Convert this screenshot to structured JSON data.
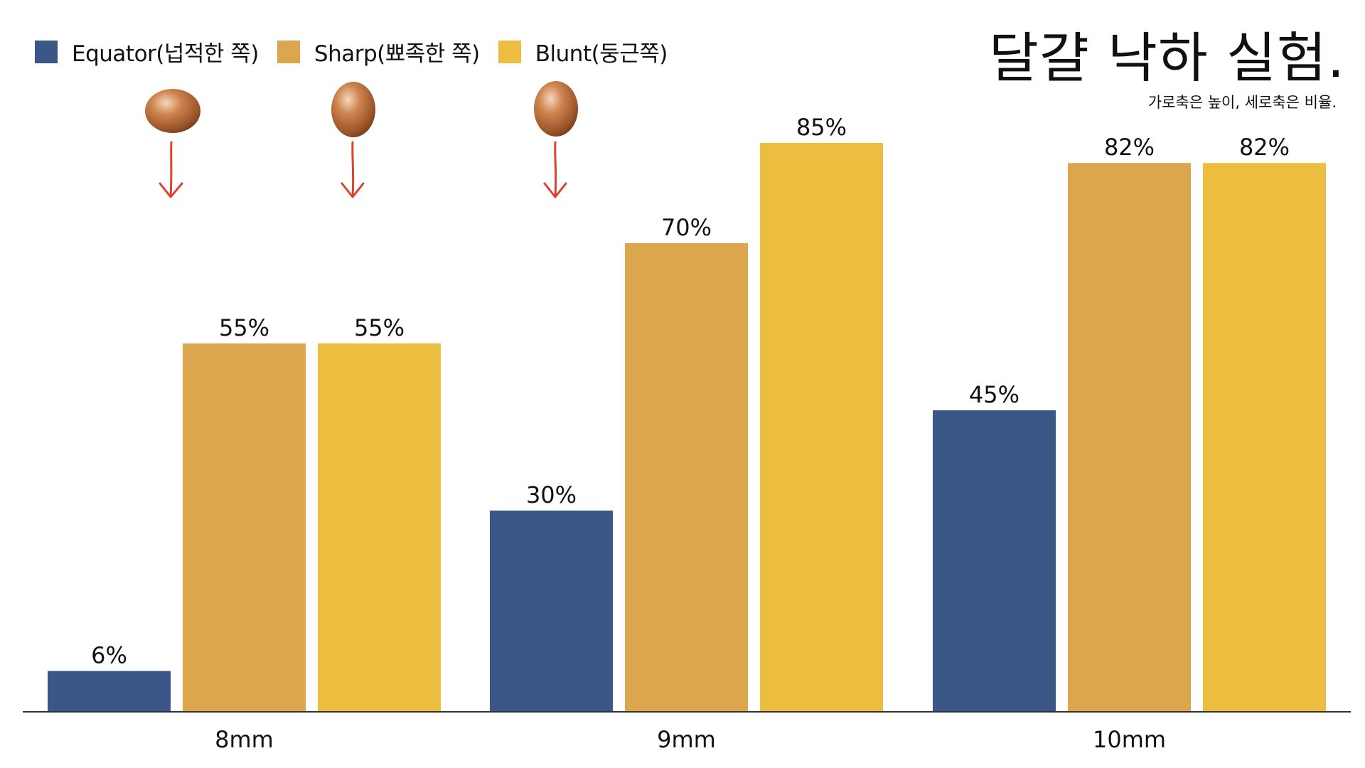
{
  "title": "달걀 낙하 실험.",
  "subtitle": "가로축은 높이, 세로축은 비율.",
  "icons": {
    "egg": "egg-icon",
    "arrow": "down-arrow-icon",
    "arrow_color": "#d9432f"
  },
  "chart_data": {
    "type": "bar",
    "categories": [
      "8mm",
      "9mm",
      "10mm"
    ],
    "series": [
      {
        "name": "Equator(넙적한 쪽)",
        "color": "#3a5787",
        "values": [
          6,
          30,
          45
        ],
        "labels": [
          "6%",
          "30%",
          "45%"
        ]
      },
      {
        "name": "Sharp(뾰족한 쪽)",
        "color": "#dca64f",
        "values": [
          55,
          70,
          82
        ],
        "labels": [
          "55%",
          "70%",
          "82%"
        ]
      },
      {
        "name": "Blunt(둥근쪽)",
        "color": "#edbd3f",
        "values": [
          55,
          85,
          82
        ],
        "labels": [
          "55%",
          "85%",
          "82%"
        ]
      }
    ],
    "ylim": [
      0,
      100
    ],
    "unit": "%",
    "grid": false,
    "legend_position": "top-left"
  }
}
